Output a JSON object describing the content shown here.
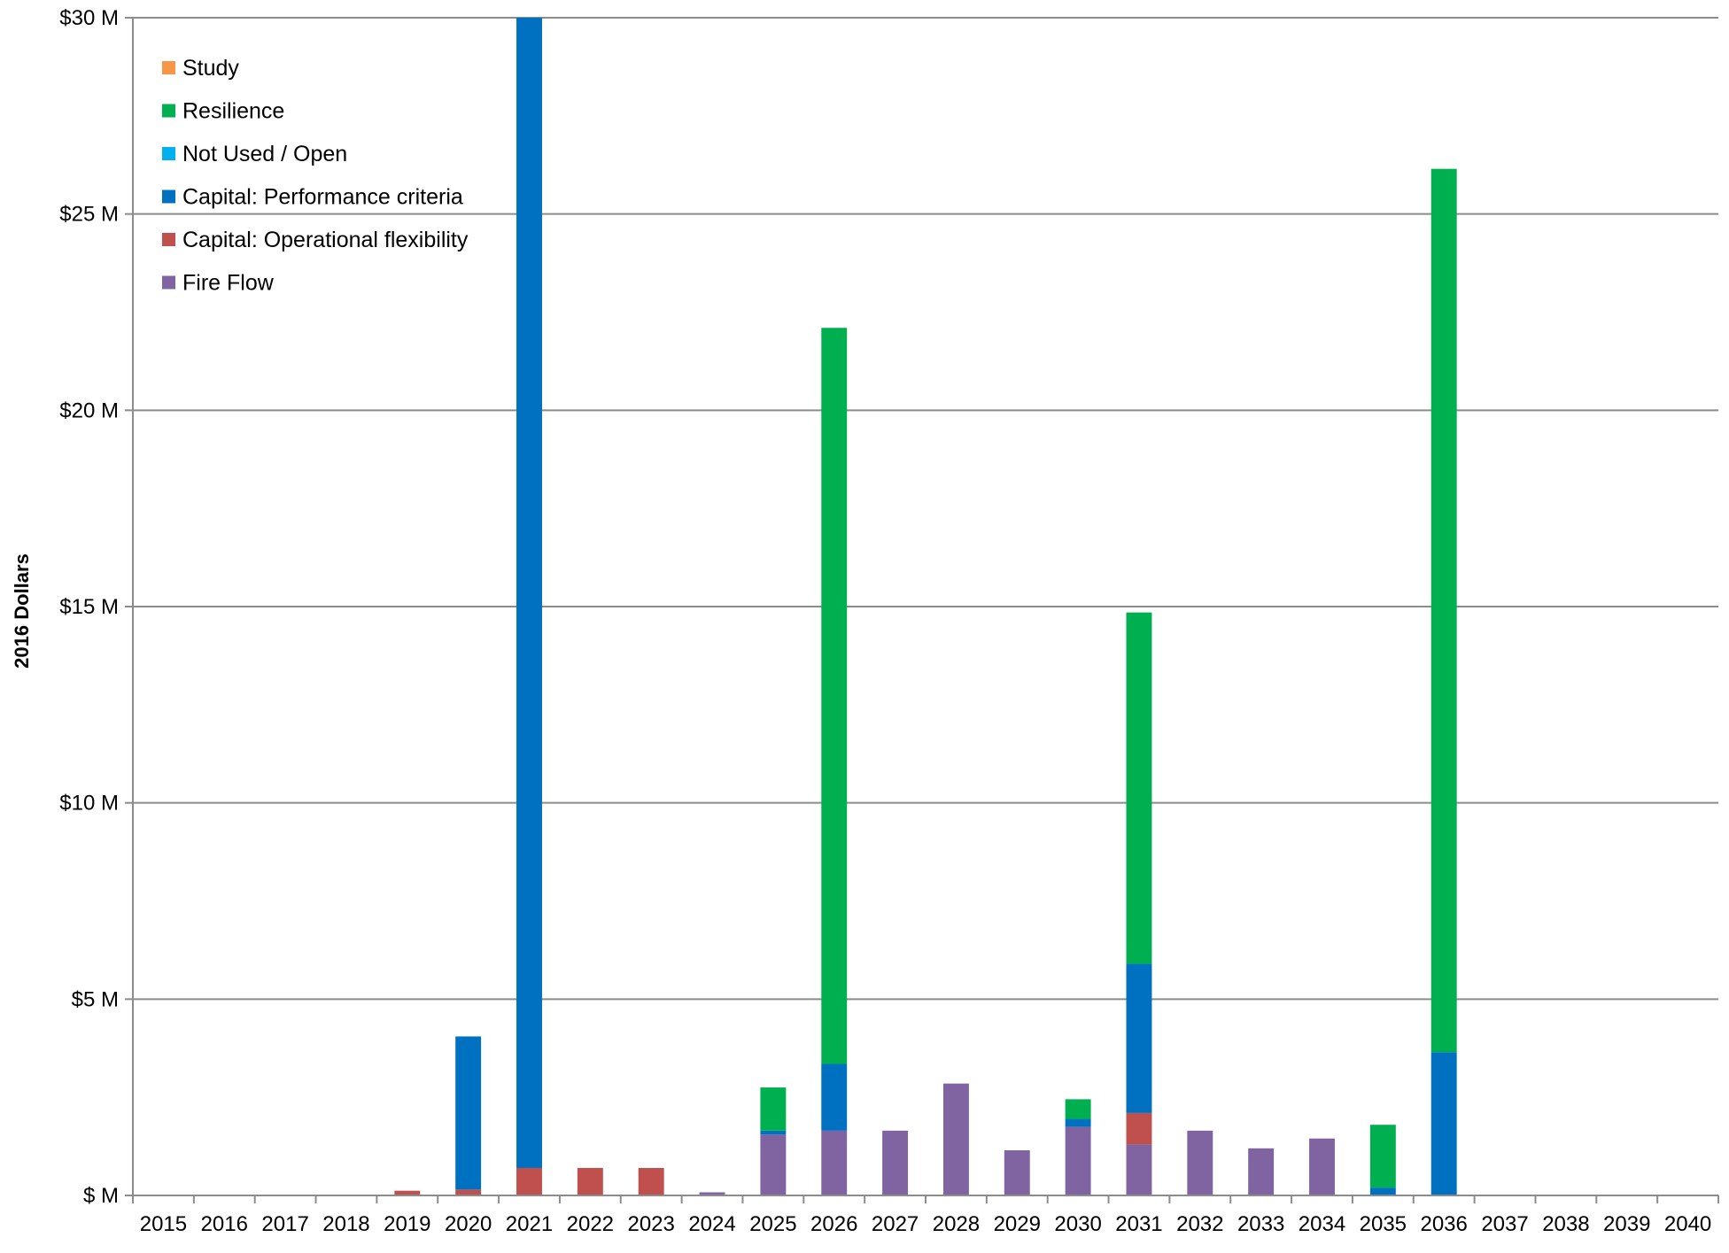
{
  "chart_data": {
    "type": "bar",
    "stacked": true,
    "title": "",
    "xlabel": "",
    "ylabel": "2016 Dollars",
    "ylim": [
      0,
      30
    ],
    "y_ticks": [
      0,
      5,
      10,
      15,
      20,
      25,
      30
    ],
    "y_tick_labels": [
      "$ M",
      "$5 M",
      "$10 M",
      "$15 M",
      "$20 M",
      "$25 M",
      "$30 M"
    ],
    "grid": true,
    "legend_position": "top-left",
    "categories": [
      "2015",
      "2016",
      "2017",
      "2018",
      "2019",
      "2020",
      "2021",
      "2022",
      "2023",
      "2024",
      "2025",
      "2026",
      "2027",
      "2028",
      "2029",
      "2030",
      "2031",
      "2032",
      "2033",
      "2034",
      "2035",
      "2036",
      "2037",
      "2038",
      "2039",
      "2040"
    ],
    "series": [
      {
        "name": "Fire Flow",
        "color": "#8064a2",
        "values": [
          0,
          0,
          0,
          0,
          0,
          0,
          0,
          0,
          0,
          0.08,
          1.55,
          1.65,
          1.65,
          2.85,
          1.15,
          1.75,
          1.3,
          1.65,
          1.2,
          1.45,
          0,
          0,
          0,
          0,
          0,
          0
        ]
      },
      {
        "name": "Capital: Operational flexibility",
        "color": "#c0504d",
        "values": [
          0,
          0,
          0,
          0,
          0.12,
          0.15,
          0.7,
          0.7,
          0.7,
          0,
          0,
          0,
          0,
          0,
          0,
          0,
          0.8,
          0,
          0,
          0,
          0,
          0,
          0,
          0,
          0,
          0
        ]
      },
      {
        "name": "Capital: Performance criteria",
        "color": "#0070c0",
        "values": [
          0,
          0,
          0,
          0,
          0,
          3.9,
          29.3,
          0,
          0,
          0,
          0.1,
          1.7,
          0,
          0,
          0,
          0.2,
          3.8,
          0,
          0,
          0,
          0.2,
          3.65,
          0,
          0,
          0,
          0
        ]
      },
      {
        "name": "Not Used / Open",
        "color": "#00b0f0",
        "values": [
          0,
          0,
          0,
          0,
          0,
          0,
          0,
          0,
          0,
          0,
          0,
          0,
          0,
          0,
          0,
          0,
          0,
          0,
          0,
          0,
          0,
          0,
          0,
          0,
          0,
          0
        ]
      },
      {
        "name": "Resilience",
        "color": "#00b050",
        "values": [
          0,
          0,
          0,
          0,
          0,
          0,
          0,
          0,
          0,
          0,
          1.1,
          18.75,
          0,
          0,
          0,
          0.5,
          8.95,
          0,
          0,
          0,
          1.6,
          22.5,
          0,
          0,
          0,
          0
        ]
      },
      {
        "name": "Study",
        "color": "#f79646",
        "values": [
          0,
          0,
          0,
          0,
          0,
          0,
          0,
          0,
          0,
          0,
          0,
          0,
          0,
          0,
          0,
          0,
          0,
          0,
          0,
          0,
          0,
          0,
          0,
          0,
          0,
          0
        ]
      }
    ],
    "legend_order": [
      "Study",
      "Resilience",
      "Not Used / Open",
      "Capital: Performance criteria",
      "Capital: Operational flexibility",
      "Fire Flow"
    ]
  }
}
